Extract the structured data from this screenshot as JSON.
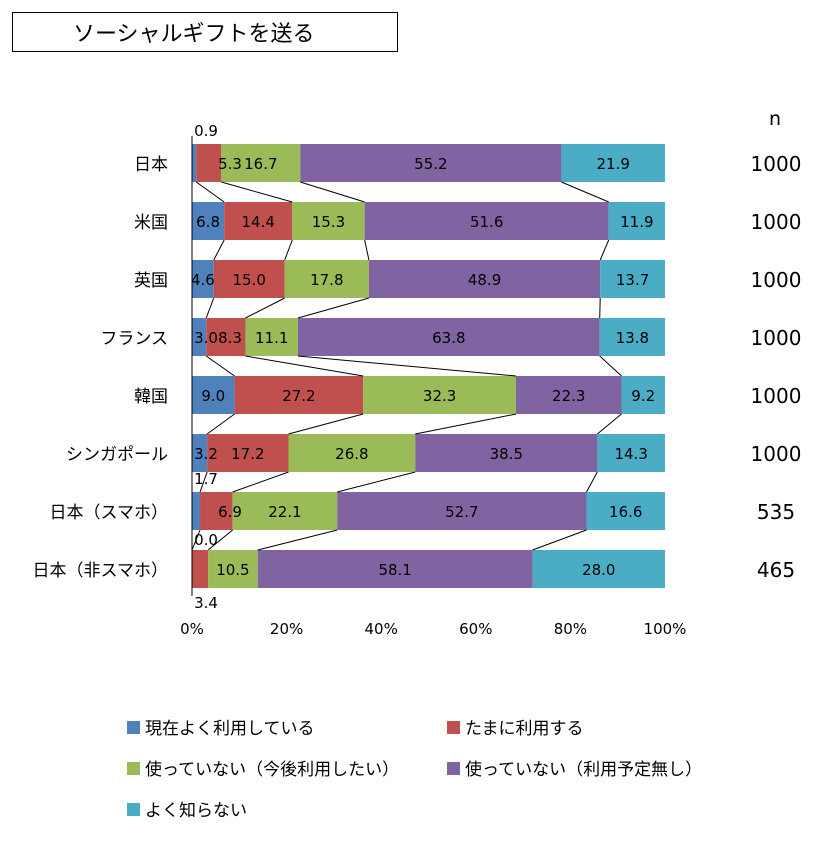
{
  "chart_data": {
    "type": "bar",
    "orientation": "horizontal-stacked-100",
    "title": "ソーシャルギフトを送る",
    "categories": [
      "日本",
      "米国",
      "英国",
      "フランス",
      "韓国",
      "シンガポール",
      "日本（スマホ）",
      "日本（非スマホ）"
    ],
    "n_header": "n",
    "n": [
      "1000",
      "1000",
      "1000",
      "1000",
      "1000",
      "1000",
      "535",
      "465"
    ],
    "series": [
      {
        "name": "現在よく利用している",
        "color": "#4f81bd",
        "values": [
          0.9,
          6.8,
          4.6,
          3.0,
          9.0,
          3.2,
          1.7,
          0.0
        ],
        "labels": [
          "0.9",
          "6.8",
          "4.6",
          "3.0",
          "9.0",
          "3.2",
          "1.7",
          "0.0"
        ]
      },
      {
        "name": "たまに利用する",
        "color": "#c0504d",
        "values": [
          5.3,
          14.4,
          15.0,
          8.3,
          27.2,
          17.2,
          6.9,
          3.4
        ],
        "labels": [
          "5.3",
          "14.4",
          "15.0",
          "8.3",
          "27.2",
          "17.2",
          "6.9",
          "3.4"
        ]
      },
      {
        "name": "使っていない（今後利用したい）",
        "color": "#9bbb59",
        "values": [
          16.7,
          15.3,
          17.8,
          11.1,
          32.3,
          26.8,
          22.1,
          10.5
        ],
        "labels": [
          "16.7",
          "15.3",
          "17.8",
          "11.1",
          "32.3",
          "26.8",
          "22.1",
          "10.5"
        ]
      },
      {
        "name": "使っていない（利用予定無し）",
        "color": "#8064a2",
        "values": [
          55.2,
          51.6,
          48.9,
          63.8,
          22.3,
          38.5,
          52.7,
          58.1
        ],
        "labels": [
          "55.2",
          "51.6",
          "48.9",
          "63.8",
          "22.3",
          "38.5",
          "52.7",
          "58.1"
        ]
      },
      {
        "name": "よく知らない",
        "color": "#4bacc6",
        "values": [
          21.9,
          11.9,
          13.7,
          13.8,
          9.2,
          14.3,
          16.6,
          28.0
        ],
        "labels": [
          "21.9",
          "11.9",
          "13.7",
          "13.8",
          "9.2",
          "14.3",
          "16.6",
          "28.0"
        ]
      }
    ],
    "xlim": [
      0,
      100
    ],
    "x_ticks": [
      "0%",
      "20%",
      "40%",
      "60%",
      "80%",
      "100%"
    ],
    "legend_position": "bottom",
    "series_lines": true
  }
}
